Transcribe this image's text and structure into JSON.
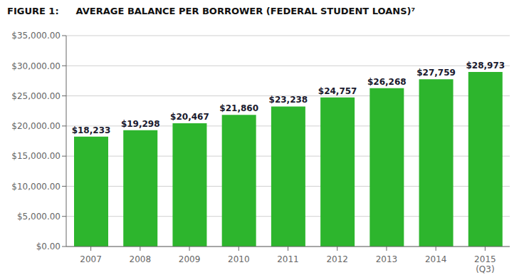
{
  "chart_data": {
    "type": "bar",
    "title": "FIGURE 1:",
    "subtitle": "AVERAGE BALANCE PER BORROWER (FEDERAL STUDENT LOANS)⁷",
    "categories": [
      "2007",
      "2008",
      "2009",
      "2010",
      "2011",
      "2012",
      "2013",
      "2014",
      "2015\n(Q3)"
    ],
    "values": [
      18233,
      19298,
      20467,
      21860,
      23238,
      24757,
      26268,
      27759,
      28973
    ],
    "value_labels": [
      "$18,233",
      "$19,298",
      "$20,467",
      "$21,860",
      "$23,238",
      "$24,757",
      "$26,268",
      "$27,759",
      "$28,973"
    ],
    "data_labels": true,
    "color": "#2db52d",
    "ylim": [
      0,
      35000
    ],
    "yticks": [
      {
        "value": 0,
        "label": "$0.00"
      },
      {
        "value": 5000,
        "label": "$5,000.00"
      },
      {
        "value": 10000,
        "label": "$10,000.00"
      },
      {
        "value": 15000,
        "label": "$15,000.00"
      },
      {
        "value": 20000,
        "label": "$20,000.00"
      },
      {
        "value": 25000,
        "label": "$25,000.00"
      },
      {
        "value": 30000,
        "label": "$30,000.00"
      },
      {
        "value": 35000,
        "label": "$35,000.00"
      }
    ],
    "grid": true
  }
}
